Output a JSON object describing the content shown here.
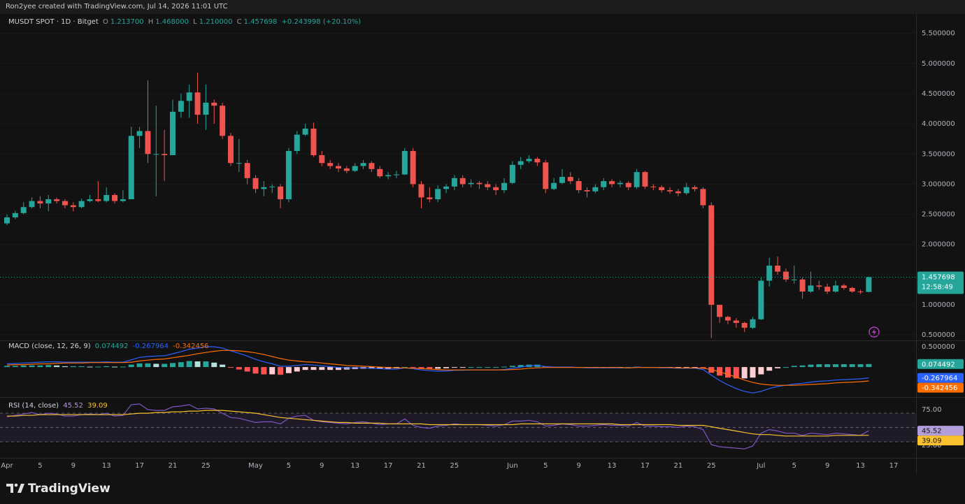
{
  "header": {
    "author": "Ron2yee created with TradingView.com, Jul 14, 2026 11:01 UTC",
    "symbol": "MUSDT SPOT · 1D · Bitget",
    "ohlc_prefixes": [
      "O",
      "H",
      "L",
      "C"
    ],
    "ohlc_values": [
      "1.213700",
      "1.468000",
      "1.210000",
      "1.457698"
    ],
    "change": "+0.243998 (+20.10%)"
  },
  "chart_data": [
    {
      "type": "candlestick",
      "categories": [
        "Apr",
        null,
        null,
        null,
        "5",
        null,
        null,
        null,
        "9",
        null,
        null,
        null,
        "13",
        null,
        null,
        null,
        "17",
        null,
        null,
        null,
        "21",
        null,
        null,
        null,
        "25",
        null,
        null,
        null,
        null,
        null,
        "May",
        null,
        null,
        null,
        "5",
        null,
        null,
        null,
        "9",
        null,
        null,
        null,
        "13",
        null,
        null,
        null,
        "17",
        null,
        null,
        null,
        "21",
        null,
        null,
        null,
        "25",
        null,
        null,
        null,
        null,
        null,
        null,
        "Jun",
        null,
        null,
        null,
        "5",
        null,
        null,
        null,
        "9",
        null,
        null,
        null,
        "13",
        null,
        null,
        null,
        "17",
        null,
        null,
        null,
        "21",
        null,
        null,
        null,
        "25",
        null,
        null,
        null,
        null,
        null,
        "Jul",
        null,
        null,
        null,
        "5",
        null,
        null,
        null,
        "9",
        null,
        null,
        null,
        "13",
        null
      ],
      "open": [
        2.35,
        2.45,
        2.52,
        2.62,
        2.72,
        2.68,
        2.75,
        2.72,
        2.65,
        2.62,
        2.72,
        2.75,
        2.72,
        2.82,
        2.72,
        2.75,
        3.8,
        3.88,
        3.5,
        3.5,
        3.48,
        4.2,
        4.38,
        4.52,
        4.15,
        4.35,
        4.3,
        3.8,
        3.35,
        3.35,
        3.1,
        2.92,
        2.95,
        2.96,
        2.75,
        3.55,
        3.82,
        3.92,
        3.48,
        3.35,
        3.3,
        3.26,
        3.22,
        3.3,
        3.35,
        3.25,
        3.13,
        3.15,
        3.16,
        3.55,
        3.0,
        2.78,
        2.75,
        2.92,
        2.96,
        3.1,
        3.0,
        3.02,
        3.0,
        2.95,
        2.9,
        3.02,
        3.32,
        3.38,
        3.42,
        3.36,
        2.92,
        3.02,
        3.12,
        3.05,
        2.9,
        2.88,
        2.95,
        3.05,
        3.0,
        3.02,
        2.95,
        3.2,
        2.96,
        2.95,
        2.9,
        2.88,
        2.85,
        2.95,
        2.92,
        2.65,
        1.0,
        0.8,
        0.74,
        0.7,
        0.62,
        0.76,
        1.4,
        1.65,
        1.55,
        1.42,
        1.42,
        1.22,
        1.32,
        1.3,
        1.22,
        1.32,
        1.28,
        1.22,
        1.2137
      ],
      "high": [
        2.5,
        2.56,
        2.7,
        2.78,
        2.8,
        2.82,
        2.78,
        2.75,
        2.7,
        2.76,
        2.82,
        3.05,
        2.95,
        2.85,
        2.9,
        3.95,
        3.95,
        4.72,
        4.3,
        3.9,
        4.4,
        4.5,
        4.65,
        4.85,
        4.65,
        4.4,
        4.35,
        3.85,
        3.75,
        3.4,
        3.15,
        3.05,
        3.0,
        3.0,
        3.6,
        3.88,
        4.0,
        4.02,
        3.55,
        3.4,
        3.35,
        3.3,
        3.35,
        3.4,
        3.38,
        3.3,
        3.2,
        3.22,
        3.6,
        3.6,
        3.05,
        2.95,
        2.98,
        3.0,
        3.15,
        3.15,
        3.08,
        3.05,
        3.05,
        3.0,
        3.1,
        3.38,
        3.45,
        3.48,
        3.45,
        3.4,
        3.1,
        3.25,
        3.2,
        3.1,
        2.95,
        3.0,
        3.1,
        3.08,
        3.06,
        3.05,
        3.25,
        3.22,
        3.0,
        2.98,
        2.95,
        2.92,
        3.02,
        2.98,
        2.95,
        2.7,
        1.0,
        0.82,
        0.78,
        0.72,
        0.8,
        1.45,
        1.78,
        1.8,
        1.6,
        1.65,
        1.45,
        1.55,
        1.4,
        1.35,
        1.4,
        1.35,
        1.3,
        1.25,
        1.468
      ],
      "low": [
        2.32,
        2.42,
        2.5,
        2.6,
        2.6,
        2.55,
        2.68,
        2.6,
        2.55,
        2.6,
        2.7,
        2.7,
        2.7,
        2.68,
        2.7,
        2.75,
        3.6,
        3.35,
        2.8,
        3.05,
        3.48,
        4.1,
        4.1,
        4.0,
        3.9,
        4.0,
        3.75,
        3.3,
        3.2,
        3.0,
        2.85,
        2.8,
        2.85,
        2.6,
        2.7,
        3.5,
        3.8,
        3.45,
        3.3,
        3.25,
        3.2,
        3.18,
        3.2,
        3.25,
        3.2,
        3.1,
        3.08,
        3.1,
        3.15,
        2.95,
        2.6,
        2.7,
        2.7,
        2.85,
        2.9,
        2.95,
        2.95,
        2.92,
        2.9,
        2.82,
        2.85,
        3.0,
        3.25,
        3.35,
        3.3,
        2.85,
        2.9,
        3.0,
        3.0,
        2.85,
        2.78,
        2.85,
        2.9,
        2.95,
        2.95,
        2.9,
        2.92,
        2.92,
        2.9,
        2.86,
        2.84,
        2.8,
        2.82,
        2.88,
        2.6,
        0.45,
        0.7,
        0.68,
        0.62,
        0.55,
        0.6,
        0.75,
        1.3,
        1.5,
        1.38,
        1.35,
        1.1,
        1.2,
        1.25,
        1.18,
        1.2,
        1.25,
        1.2,
        1.18,
        1.21
      ],
      "close": [
        2.45,
        2.52,
        2.62,
        2.72,
        2.68,
        2.75,
        2.72,
        2.65,
        2.62,
        2.72,
        2.75,
        2.72,
        2.82,
        2.72,
        2.75,
        3.8,
        3.88,
        3.5,
        3.5,
        3.48,
        4.2,
        4.38,
        4.52,
        4.15,
        4.35,
        4.3,
        3.8,
        3.35,
        3.35,
        3.1,
        2.92,
        2.95,
        2.96,
        2.75,
        3.55,
        3.82,
        3.92,
        3.48,
        3.35,
        3.3,
        3.26,
        3.22,
        3.3,
        3.35,
        3.25,
        3.13,
        3.15,
        3.16,
        3.55,
        3.0,
        2.78,
        2.75,
        2.92,
        2.96,
        3.1,
        3.0,
        3.02,
        3.0,
        2.95,
        2.9,
        3.02,
        3.32,
        3.38,
        3.42,
        3.36,
        2.92,
        3.02,
        3.12,
        3.05,
        2.9,
        2.88,
        2.95,
        3.05,
        3.0,
        3.02,
        2.95,
        3.2,
        2.96,
        2.95,
        2.9,
        2.88,
        2.85,
        2.95,
        2.92,
        2.65,
        1.0,
        0.8,
        0.74,
        0.7,
        0.62,
        0.76,
        1.4,
        1.65,
        1.55,
        1.42,
        1.42,
        1.22,
        1.32,
        1.3,
        1.22,
        1.32,
        1.28,
        1.22,
        1.2137,
        1.457698
      ],
      "up_color": "#26a69a",
      "down_color": "#ef5350",
      "ylim": [
        0.41,
        5.82
      ],
      "yticks": [
        {
          "value": 0.5,
          "label": "0.500000"
        },
        {
          "value": 1.0,
          "label": "1.000000"
        },
        {
          "value": 1.5,
          "label": "1.500000"
        },
        {
          "value": 2.0,
          "label": "2.000000"
        },
        {
          "value": 2.5,
          "label": "2.500000"
        },
        {
          "value": 3.0,
          "label": "3.000000"
        },
        {
          "value": 3.5,
          "label": "3.500000"
        },
        {
          "value": 4.0,
          "label": "4.000000"
        },
        {
          "value": 4.5,
          "label": "4.500000"
        },
        {
          "value": 5.0,
          "label": "5.000000"
        },
        {
          "value": 5.5,
          "label": "5.500000"
        }
      ],
      "last_price_label": "1.457698",
      "countdown": "12:58:49",
      "extra_x_label": "17"
    },
    {
      "type": "macd",
      "title": "MACD (close, 12, 26, 9)",
      "ylim": [
        -0.74,
        0.64
      ],
      "yticks": [
        {
          "value": 0.5,
          "label": "0.500000"
        }
      ],
      "hist_colors": [
        "#26a69a",
        "#b2dfdb",
        "#ffcdd2",
        "#ff5252"
      ],
      "series": [
        {
          "kind": "histogram",
          "color": "#26a69a",
          "last_label": "0.074492",
          "values": [
            0.03,
            0.03,
            0.04,
            0.04,
            0.04,
            0.05,
            0.04,
            0.02,
            0.02,
            0.02,
            0.01,
            0.01,
            0.02,
            0.01,
            0.01,
            0.06,
            0.09,
            0.09,
            0.08,
            0.08,
            0.1,
            0.12,
            0.15,
            0.14,
            0.14,
            0.11,
            0.06,
            -0.01,
            -0.06,
            -0.11,
            -0.16,
            -0.18,
            -0.18,
            -0.19,
            -0.15,
            -0.11,
            -0.07,
            -0.07,
            -0.07,
            -0.07,
            -0.07,
            -0.06,
            -0.05,
            -0.04,
            -0.04,
            -0.04,
            -0.04,
            -0.03,
            0,
            -0.01,
            -0.03,
            -0.04,
            -0.04,
            -0.03,
            -0.01,
            -0.01,
            0,
            0,
            0,
            0,
            0.01,
            0.03,
            0.05,
            0.06,
            0.06,
            0.02,
            0.01,
            0.01,
            0.01,
            0,
            -0.01,
            -0.01,
            -0.01,
            -0.01,
            -0.01,
            0,
            0.01,
            0,
            0,
            -0.01,
            -0.01,
            -0.01,
            -0.01,
            -0.01,
            -0.03,
            -0.14,
            -0.21,
            -0.26,
            -0.28,
            -0.28,
            -0.26,
            -0.18,
            -0.09,
            -0.03,
            0,
            0.03,
            0.04,
            0.06,
            0.07,
            0.07,
            0.07,
            0.07,
            0.07,
            0.07,
            0.074492
          ]
        },
        {
          "kind": "line",
          "color": "#2962ff",
          "last_label": "-0.267964",
          "values": [
            0.08,
            0.09,
            0.1,
            0.11,
            0.12,
            0.13,
            0.13,
            0.12,
            0.12,
            0.12,
            0.12,
            0.12,
            0.13,
            0.12,
            0.12,
            0.18,
            0.24,
            0.26,
            0.27,
            0.28,
            0.33,
            0.38,
            0.44,
            0.47,
            0.5,
            0.5,
            0.47,
            0.4,
            0.34,
            0.27,
            0.19,
            0.13,
            0.08,
            0.02,
            0.02,
            0.04,
            0.06,
            0.05,
            0.03,
            0.01,
            -0.01,
            -0.02,
            -0.02,
            -0.02,
            -0.03,
            -0.04,
            -0.05,
            -0.05,
            -0.02,
            -0.04,
            -0.07,
            -0.09,
            -0.1,
            -0.1,
            -0.08,
            -0.08,
            -0.07,
            -0.07,
            -0.07,
            -0.07,
            -0.06,
            -0.03,
            0,
            0.03,
            0.04,
            0.01,
            0,
            0,
            0,
            -0.01,
            -0.02,
            -0.02,
            -0.02,
            -0.02,
            -0.02,
            -0.02,
            0,
            -0.01,
            -0.01,
            -0.02,
            -0.02,
            -0.03,
            -0.03,
            -0.03,
            -0.06,
            -0.2,
            -0.33,
            -0.44,
            -0.53,
            -0.6,
            -0.64,
            -0.6,
            -0.53,
            -0.48,
            -0.45,
            -0.42,
            -0.4,
            -0.37,
            -0.35,
            -0.34,
            -0.32,
            -0.31,
            -0.3,
            -0.29,
            -0.267964
          ]
        },
        {
          "kind": "line",
          "color": "#ff6d00",
          "last_label": "-0.342456",
          "values": [
            0.05,
            0.06,
            0.06,
            0.07,
            0.08,
            0.08,
            0.09,
            0.1,
            0.1,
            0.1,
            0.11,
            0.11,
            0.11,
            0.11,
            0.11,
            0.12,
            0.15,
            0.17,
            0.19,
            0.2,
            0.23,
            0.26,
            0.29,
            0.33,
            0.36,
            0.39,
            0.41,
            0.41,
            0.4,
            0.38,
            0.35,
            0.31,
            0.26,
            0.21,
            0.17,
            0.15,
            0.13,
            0.12,
            0.1,
            0.08,
            0.06,
            0.04,
            0.03,
            0.02,
            0.01,
            0,
            -0.01,
            -0.02,
            -0.02,
            -0.03,
            -0.04,
            -0.05,
            -0.06,
            -0.07,
            -0.07,
            -0.07,
            -0.07,
            -0.07,
            -0.07,
            -0.07,
            -0.07,
            -0.06,
            -0.05,
            -0.03,
            -0.02,
            -0.01,
            -0.01,
            -0.01,
            -0.01,
            -0.01,
            -0.01,
            -0.01,
            -0.01,
            -0.01,
            -0.01,
            -0.02,
            -0.01,
            -0.01,
            -0.01,
            -0.01,
            -0.01,
            -0.02,
            -0.02,
            -0.02,
            -0.03,
            -0.06,
            -0.12,
            -0.18,
            -0.25,
            -0.32,
            -0.38,
            -0.42,
            -0.44,
            -0.45,
            -0.45,
            -0.45,
            -0.44,
            -0.43,
            -0.42,
            -0.41,
            -0.39,
            -0.38,
            -0.37,
            -0.36,
            -0.342456
          ]
        }
      ]
    },
    {
      "type": "rsi",
      "title": "RSI (14, close)",
      "ylim": [
        7.4,
        91.7
      ],
      "yticks": [
        {
          "value": 75,
          "label": "75.00"
        },
        {
          "value": 25,
          "label": "25.00"
        }
      ],
      "levels": [
        70,
        50,
        30
      ],
      "band_color": "#7e57c2",
      "series": [
        {
          "kind": "line",
          "color": "#7e57c2",
          "label_color": "#b39ddb",
          "last_label": "45.52",
          "values": [
            65,
            67,
            69,
            71,
            68,
            70,
            69,
            66,
            66,
            68,
            69,
            68,
            70,
            66,
            67,
            82,
            83,
            75,
            74,
            74,
            79,
            80,
            82,
            76,
            77,
            76,
            70,
            64,
            63,
            60,
            57,
            58,
            58,
            55,
            63,
            66,
            67,
            60,
            58,
            57,
            56,
            55,
            57,
            58,
            56,
            54,
            55,
            55,
            62,
            53,
            50,
            49,
            52,
            53,
            55,
            54,
            54,
            54,
            53,
            52,
            54,
            59,
            59,
            60,
            58,
            52,
            53,
            55,
            54,
            52,
            52,
            53,
            54,
            53,
            53,
            52,
            57,
            52,
            52,
            51,
            51,
            50,
            52,
            51,
            47,
            26,
            23,
            22,
            21,
            20,
            24,
            42,
            47,
            45,
            42,
            42,
            39,
            42,
            41,
            40,
            42,
            41,
            40,
            39,
            45.52
          ]
        },
        {
          "kind": "line",
          "color": "#f9c22e",
          "label_color": "#f9c22e",
          "last_label": "39.09",
          "values": [
            66,
            66,
            67,
            67,
            68,
            68,
            68,
            68,
            68,
            68,
            68,
            68,
            68,
            68,
            68,
            69,
            70,
            70,
            71,
            71,
            72,
            72,
            73,
            73,
            74,
            74,
            74,
            73,
            72,
            71,
            70,
            68,
            66,
            64,
            63,
            62,
            61,
            60,
            59,
            58,
            57,
            57,
            56,
            56,
            56,
            56,
            55,
            55,
            55,
            55,
            55,
            54,
            54,
            54,
            54,
            54,
            54,
            54,
            54,
            54,
            54,
            54,
            55,
            55,
            55,
            55,
            55,
            55,
            55,
            55,
            55,
            55,
            55,
            55,
            54,
            54,
            54,
            54,
            54,
            54,
            54,
            53,
            53,
            53,
            53,
            51,
            49,
            47,
            45,
            43,
            41,
            40,
            40,
            39,
            38,
            38,
            38,
            38,
            38,
            38,
            39,
            39,
            39,
            39,
            39.09
          ]
        }
      ]
    }
  ],
  "footer": {
    "brand": "TradingView"
  }
}
